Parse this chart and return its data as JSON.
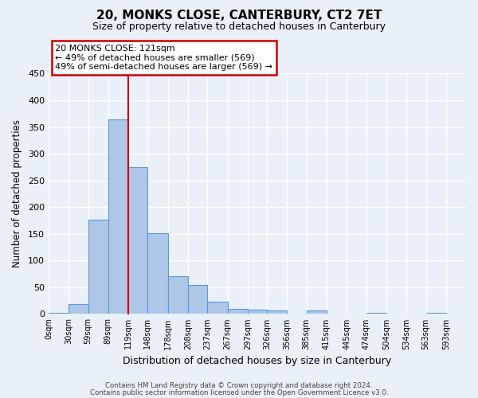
{
  "title": "20, MONKS CLOSE, CANTERBURY, CT2 7ET",
  "subtitle": "Size of property relative to detached houses in Canterbury",
  "xlabel": "Distribution of detached houses by size in Canterbury",
  "ylabel": "Number of detached properties",
  "bar_left_edges": [
    0,
    30,
    59,
    89,
    119,
    148,
    178,
    208,
    237,
    267,
    297,
    326,
    356,
    385,
    415,
    445,
    474,
    504,
    534,
    563
  ],
  "bar_widths": [
    30,
    29,
    30,
    30,
    29,
    30,
    30,
    29,
    30,
    30,
    29,
    30,
    29,
    30,
    30,
    29,
    30,
    30,
    29,
    30
  ],
  "bar_heights": [
    2,
    18,
    176,
    365,
    275,
    151,
    71,
    54,
    23,
    9,
    8,
    6,
    1,
    7,
    0,
    0,
    2,
    0,
    0,
    2
  ],
  "tick_labels": [
    "0sqm",
    "30sqm",
    "59sqm",
    "89sqm",
    "119sqm",
    "148sqm",
    "178sqm",
    "208sqm",
    "237sqm",
    "267sqm",
    "297sqm",
    "326sqm",
    "356sqm",
    "385sqm",
    "415sqm",
    "445sqm",
    "474sqm",
    "504sqm",
    "534sqm",
    "563sqm",
    "593sqm"
  ],
  "tick_positions": [
    0,
    30,
    59,
    89,
    119,
    148,
    178,
    208,
    237,
    267,
    297,
    326,
    356,
    385,
    415,
    445,
    474,
    504,
    534,
    563,
    593
  ],
  "bar_color": "#aec6e8",
  "bar_edge_color": "#5b9bd5",
  "bg_color": "#eaf0f8",
  "grid_color": "#ffffff",
  "vline_x": 119,
  "vline_color": "#cc0000",
  "annotation_box_text": "20 MONKS CLOSE: 121sqm\n← 49% of detached houses are smaller (569)\n49% of semi-detached houses are larger (569) →",
  "annotation_box_color": "#cc0000",
  "ylim": [
    0,
    450
  ],
  "yticks": [
    0,
    50,
    100,
    150,
    200,
    250,
    300,
    350,
    400,
    450
  ],
  "footer1": "Contains HM Land Registry data © Crown copyright and database right 2024.",
  "footer2": "Contains public sector information licensed under the Open Government Licence v3.0."
}
